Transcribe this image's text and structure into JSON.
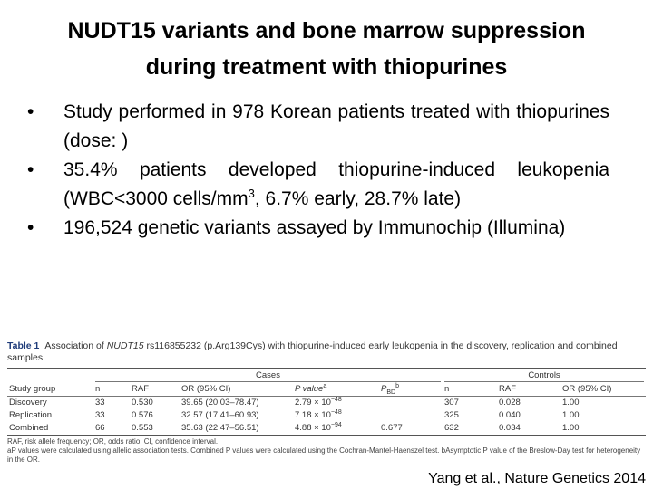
{
  "header": {
    "title": "NUDT15 variants and bone marrow suppression during treatment with thiopurines"
  },
  "bullets": [
    {
      "text": "Study performed in 978 Korean patients treated with thiopurines (dose: )"
    },
    {
      "text": "35.4% patients developed thiopurine-induced leukopenia (WBC<3000 cells/mm",
      "sup": "3",
      "text_after": ", 6.7% early, 28.7% late)"
    },
    {
      "text": "196,524 genetic variants assayed by Immunochip (Illumina)"
    }
  ],
  "table": {
    "label": "Table 1",
    "caption_start": "Association of ",
    "caption_gene": "NUDT15",
    "caption_end": " rs116855232 (p.Arg139Cys) with thiopurine-induced early leukopenia in the discovery, replication and combined samples",
    "group_headers": [
      "Cases",
      "Controls"
    ],
    "columns": [
      "Study group",
      "n",
      "RAF",
      "OR (95% CI)",
      {
        "text": "P value",
        "sup": "a"
      },
      {
        "text": "P",
        "sub": "BD",
        "sup": "b"
      },
      "n",
      "RAF",
      "OR (95% CI)"
    ],
    "rows": [
      [
        "Discovery",
        "33",
        "0.530",
        "39.65 (20.03–78.47)",
        {
          "base": "2.79 × 10",
          "exp": "−48"
        },
        null,
        "307",
        "0.028",
        "1.00"
      ],
      [
        "Replication",
        "33",
        "0.576",
        "32.57 (17.41–60.93)",
        {
          "base": "7.18 × 10",
          "exp": "−48"
        },
        null,
        "325",
        "0.040",
        "1.00"
      ],
      [
        "Combined",
        "66",
        "0.553",
        "35.63 (22.47–56.51)",
        {
          "base": "4.88 × 10",
          "exp": "−94"
        },
        "0.677",
        "632",
        "0.034",
        "1.00"
      ]
    ],
    "footnotes": [
      "RAF, risk allele frequency; OR, odds ratio; CI, confidence interval.",
      "aP values were calculated using allelic association tests. Combined P values were calculated using the Cochran-Mantel-Haenszel test. bAsymptotic P value of the Breslow-Day test for heterogeneity in the OR."
    ]
  },
  "citation": "Yang et al., Nature Genetics 2014"
}
